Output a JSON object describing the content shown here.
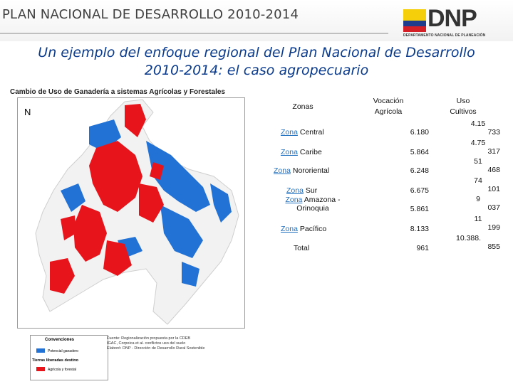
{
  "header": {
    "title": "PLAN NACIONAL DE DESARROLLO 2010-2014"
  },
  "logo": {
    "text": "DNP",
    "subtext": "DEPARTAMENTO NACIONAL DE PLANEACIÓN",
    "flag_colors": [
      "#f5cf0a",
      "#1f3c8c",
      "#d51f26"
    ]
  },
  "subtitle": {
    "line1": "Un ejemplo del enfoque regional del Plan Nacional de Desarrollo",
    "line2": "2010-2014: el caso agropecuario"
  },
  "map": {
    "title": "Cambio de Uso de Ganadería a sistemas Agrícolas y Forestales",
    "north_symbol": "N",
    "legend": {
      "title": "Convenciones",
      "item1_label": "Potencial ganadero",
      "group_title": "Tierras liberadas destino",
      "item2_label": "Agrícola y forestal"
    },
    "source_lines": [
      "Fuente: Regionalización propuesta por la CDEB",
      "IGAC, Corpoica et al. conflictos uso del suelo",
      "Elaboró: DNP - Dirección de Desarrollo Rural Sostenible"
    ],
    "colors": {
      "livestock": "#2272d6",
      "agricultural": "#e8141c",
      "land": "#f2f2f2"
    }
  },
  "table": {
    "headers": {
      "zonas": "Zonas",
      "vocacion_1": "Vocación",
      "vocacion_2": "Agrícola",
      "uso_1": "Uso",
      "uso_2": "Cultivos"
    },
    "rows": [
      {
        "zone_word": "Zona",
        "zone_rest": " Central",
        "vocacion": "6.180",
        "uso_top": "4.15",
        "uso_bottom": "733"
      },
      {
        "zone_word": "Zona",
        "zone_rest": " Caribe",
        "vocacion": "5.864",
        "uso_top": "4.75",
        "uso_bottom": "317"
      },
      {
        "zone_word": "Zona",
        "zone_rest": " Nororiental",
        "vocacion": "6.248",
        "uso_top": "51",
        "uso_bottom": "468"
      },
      {
        "zone_word": "Zona",
        "zone_rest": " Sur",
        "vocacion": "6.675",
        "uso_top": "74",
        "uso_bottom": "101"
      },
      {
        "zone_word": "Zona",
        "zone_rest": " Amazona -",
        "zone_line2": "Orinoquia",
        "vocacion": "5.861",
        "uso_top": "9",
        "uso_bottom": "037"
      },
      {
        "zone_word": "Zona",
        "zone_rest": " Pacífico",
        "vocacion": "8.133",
        "uso_top": "11",
        "uso_bottom": "199"
      }
    ],
    "total": {
      "label": "Total",
      "vocacion": "961",
      "uso_top": "10.388.",
      "uso_bottom": "855"
    }
  }
}
